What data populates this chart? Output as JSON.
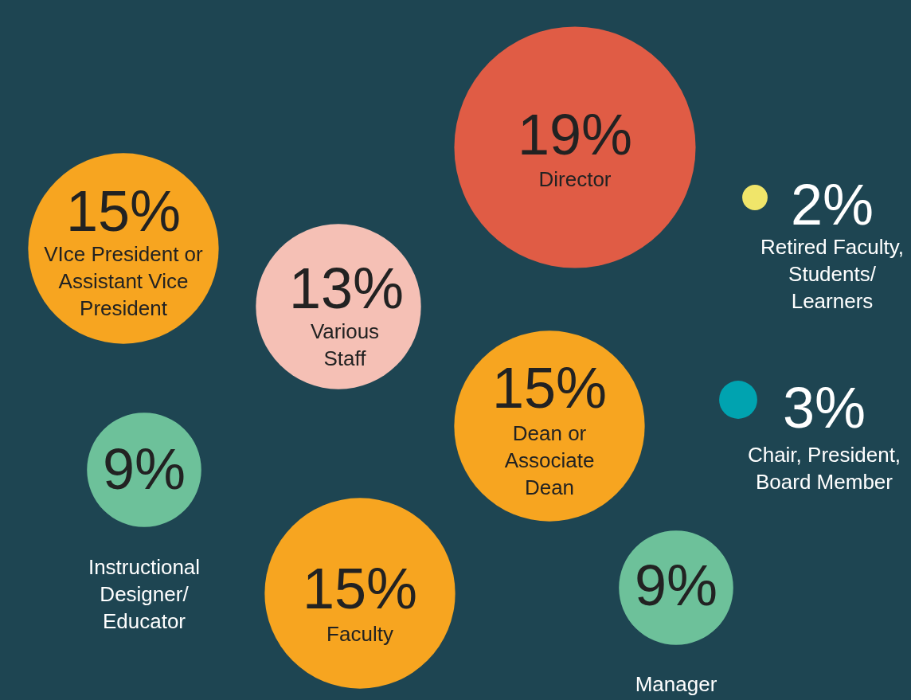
{
  "chart_data": {
    "type": "other",
    "categories": [
      "Director",
      "VIce President or Assistant Vice President",
      "Various Staff",
      "Dean or Associate Dean",
      "Faculty",
      "Instructional Designer/ Educator",
      "Manager",
      "Retired Faculty, Students/ Learners",
      "Chair, President, Board Member"
    ],
    "values": [
      19,
      15,
      13,
      15,
      15,
      9,
      9,
      2,
      3
    ],
    "value_labels": [
      "19%",
      "15%",
      "13%",
      "15%",
      "15%",
      "9%",
      "9%",
      "2%",
      "3%"
    ],
    "colors": [
      "#e05c45",
      "#f7a520",
      "#f5c0b5",
      "#f7a520",
      "#f7a520",
      "#6dc19a",
      "#6dc19a",
      "#f0e56a",
      "#00a3b0"
    ]
  }
}
